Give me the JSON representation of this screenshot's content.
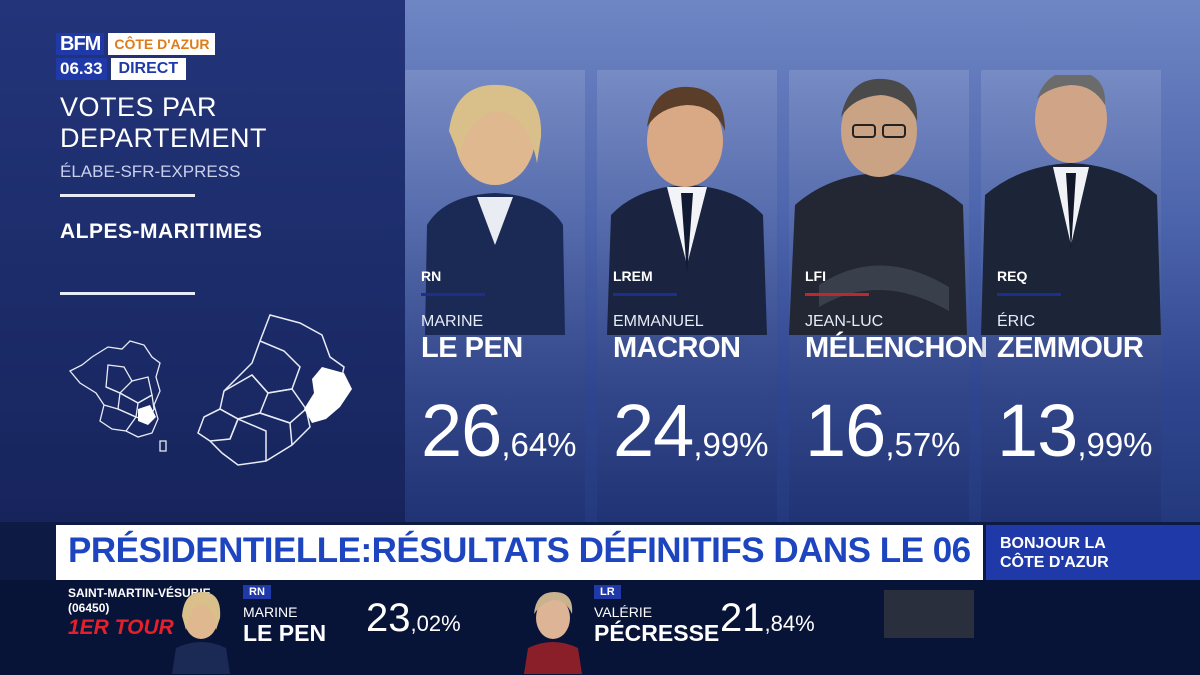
{
  "logo": {
    "brand": "BFM",
    "region": "CÔTE D'AZUR",
    "time": "06.33",
    "live": "DIRECT"
  },
  "panel": {
    "title": "VOTES PAR DEPARTEMENT",
    "source": "ÉLABE-SFR-EXPRESS",
    "department": "ALPES-MARITIMES"
  },
  "candidates": [
    {
      "party": "RN",
      "first_name": "MARINE",
      "last_name": "LE PEN",
      "score_int": "26",
      "score_dec": ",64%",
      "party_color": "#1d2f8c"
    },
    {
      "party": "LREM",
      "first_name": "EMMANUEL",
      "last_name": "MACRON",
      "score_int": "24",
      "score_dec": ",99%",
      "party_color": "#1d2f8c"
    },
    {
      "party": "LFI",
      "first_name": "JEAN-LUC",
      "last_name": "MÉLENCHON",
      "score_int": "16",
      "score_dec": ",57%",
      "party_color": "#c0262e"
    },
    {
      "party": "REQ",
      "first_name": "ÉRIC",
      "last_name": "ZEMMOUR",
      "score_int": "13",
      "score_dec": ",99%",
      "party_color": "#1d2f8c"
    }
  ],
  "banner": {
    "headline": "PRÉSIDENTIELLE:RÉSULTATS DÉFINITIFS DANS LE 06"
  },
  "show": {
    "line1": "BONJOUR LA",
    "line2": "CÔTE D'AZUR"
  },
  "ticker": {
    "location": "SAINT-MARTIN-VÉSUBIE",
    "postcode": "(06450)",
    "round": "1ER TOUR",
    "entries": [
      {
        "party": "RN",
        "first_name": "MARINE",
        "last_name": "LE PEN",
        "score_int": "23",
        "score_dec": ",02%"
      },
      {
        "party": "LR",
        "first_name": "VALÉRIE",
        "last_name": "PÉCRESSE",
        "score_int": "21",
        "score_dec": ",84%"
      }
    ]
  }
}
